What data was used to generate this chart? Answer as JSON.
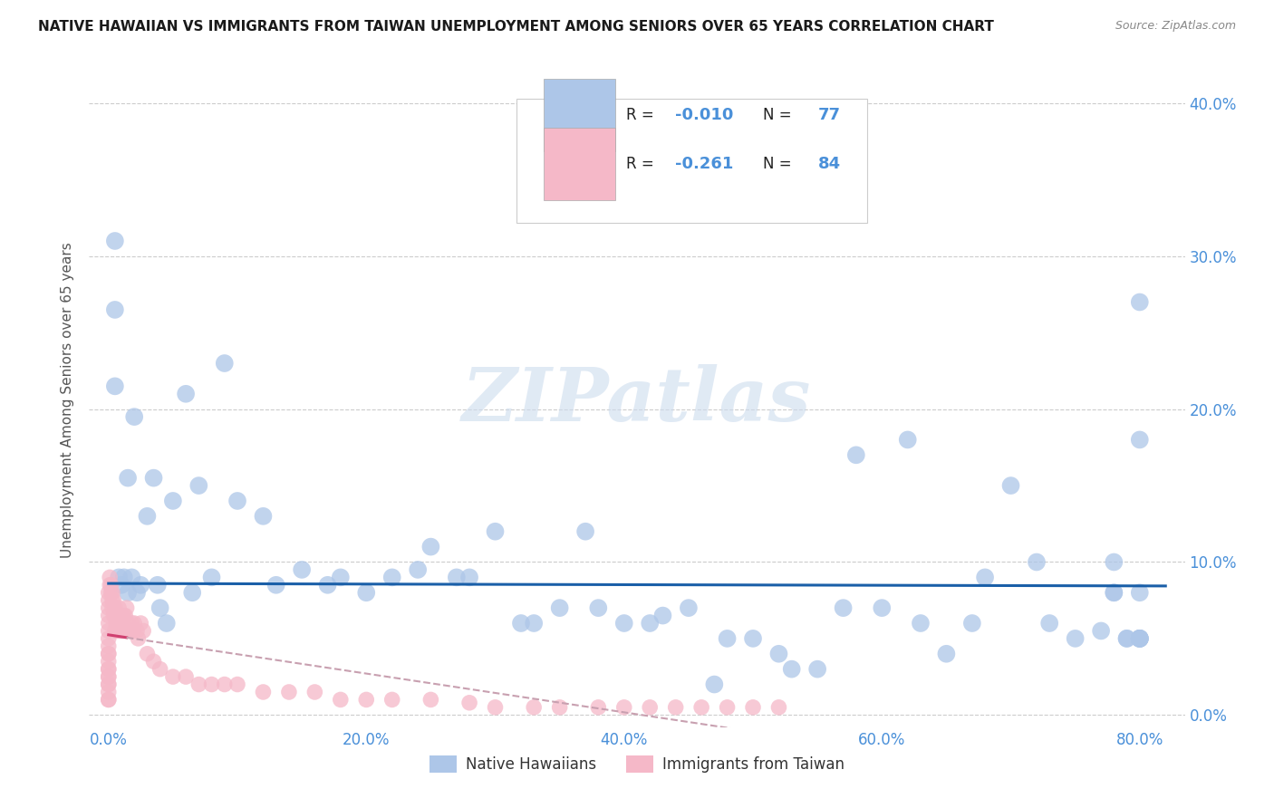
{
  "title": "NATIVE HAWAIIAN VS IMMIGRANTS FROM TAIWAN UNEMPLOYMENT AMONG SENIORS OVER 65 YEARS CORRELATION CHART",
  "source": "Source: ZipAtlas.com",
  "ylabel_label": "Unemployment Among Seniors over 65 years",
  "legend_label_blue": "Native Hawaiians",
  "legend_label_pink": "Immigrants from Taiwan",
  "R_blue": "-0.010",
  "N_blue": "77",
  "R_pink": "-0.261",
  "N_pink": "84",
  "blue_color": "#adc6e8",
  "pink_color": "#f5b8c8",
  "trend_blue_color": "#1a5fa8",
  "trend_pink_solid_color": "#d04070",
  "trend_pink_dash_color": "#c8a0b0",
  "axis_tick_color": "#4a90d9",
  "grid_color": "#cccccc",
  "background_color": "#ffffff",
  "watermark_text": "ZIPatlas",
  "watermark_color": "#ccdcee",
  "blue_x": [
    0.005,
    0.005,
    0.005,
    0.008,
    0.01,
    0.012,
    0.015,
    0.015,
    0.018,
    0.02,
    0.022,
    0.025,
    0.03,
    0.035,
    0.038,
    0.04,
    0.045,
    0.05,
    0.06,
    0.065,
    0.07,
    0.08,
    0.09,
    0.1,
    0.12,
    0.13,
    0.15,
    0.17,
    0.18,
    0.2,
    0.22,
    0.24,
    0.25,
    0.27,
    0.28,
    0.3,
    0.32,
    0.33,
    0.35,
    0.37,
    0.38,
    0.4,
    0.42,
    0.43,
    0.45,
    0.47,
    0.48,
    0.5,
    0.52,
    0.53,
    0.55,
    0.57,
    0.58,
    0.6,
    0.62,
    0.63,
    0.65,
    0.67,
    0.68,
    0.7,
    0.72,
    0.73,
    0.75,
    0.77,
    0.78,
    0.79,
    0.8,
    0.8,
    0.8,
    0.8,
    0.78,
    0.78,
    0.79,
    0.8,
    0.8,
    0.8,
    0.8
  ],
  "blue_y": [
    0.31,
    0.265,
    0.215,
    0.09,
    0.085,
    0.09,
    0.155,
    0.08,
    0.09,
    0.195,
    0.08,
    0.085,
    0.13,
    0.155,
    0.085,
    0.07,
    0.06,
    0.14,
    0.21,
    0.08,
    0.15,
    0.09,
    0.23,
    0.14,
    0.13,
    0.085,
    0.095,
    0.085,
    0.09,
    0.08,
    0.09,
    0.095,
    0.11,
    0.09,
    0.09,
    0.12,
    0.06,
    0.06,
    0.07,
    0.12,
    0.07,
    0.06,
    0.06,
    0.065,
    0.07,
    0.02,
    0.05,
    0.05,
    0.04,
    0.03,
    0.03,
    0.07,
    0.17,
    0.07,
    0.18,
    0.06,
    0.04,
    0.06,
    0.09,
    0.15,
    0.1,
    0.06,
    0.05,
    0.055,
    0.08,
    0.05,
    0.05,
    0.05,
    0.27,
    0.18,
    0.1,
    0.08,
    0.05,
    0.08,
    0.05,
    0.05,
    0.05
  ],
  "pink_x": [
    0.0,
    0.0,
    0.0,
    0.0,
    0.0,
    0.0,
    0.0,
    0.0,
    0.0,
    0.0,
    0.0,
    0.0,
    0.0,
    0.0,
    0.0,
    0.0,
    0.0,
    0.0,
    0.0,
    0.0,
    0.001,
    0.001,
    0.002,
    0.002,
    0.003,
    0.003,
    0.003,
    0.004,
    0.004,
    0.005,
    0.005,
    0.005,
    0.006,
    0.006,
    0.007,
    0.007,
    0.008,
    0.008,
    0.009,
    0.01,
    0.01,
    0.011,
    0.012,
    0.013,
    0.013,
    0.014,
    0.015,
    0.016,
    0.017,
    0.018,
    0.019,
    0.02,
    0.022,
    0.023,
    0.025,
    0.027,
    0.03,
    0.035,
    0.04,
    0.05,
    0.06,
    0.07,
    0.08,
    0.09,
    0.1,
    0.12,
    0.14,
    0.16,
    0.18,
    0.2,
    0.22,
    0.25,
    0.28,
    0.3,
    0.33,
    0.35,
    0.38,
    0.4,
    0.42,
    0.44,
    0.46,
    0.48,
    0.5,
    0.52
  ],
  "pink_y": [
    0.075,
    0.08,
    0.07,
    0.065,
    0.06,
    0.055,
    0.05,
    0.045,
    0.04,
    0.04,
    0.035,
    0.03,
    0.03,
    0.025,
    0.025,
    0.02,
    0.02,
    0.015,
    0.01,
    0.01,
    0.09,
    0.085,
    0.085,
    0.08,
    0.08,
    0.075,
    0.07,
    0.075,
    0.065,
    0.07,
    0.065,
    0.055,
    0.065,
    0.06,
    0.06,
    0.055,
    0.07,
    0.065,
    0.055,
    0.065,
    0.06,
    0.055,
    0.065,
    0.065,
    0.055,
    0.07,
    0.06,
    0.055,
    0.055,
    0.06,
    0.055,
    0.06,
    0.055,
    0.05,
    0.06,
    0.055,
    0.04,
    0.035,
    0.03,
    0.025,
    0.025,
    0.02,
    0.02,
    0.02,
    0.02,
    0.015,
    0.015,
    0.015,
    0.01,
    0.01,
    0.01,
    0.01,
    0.008,
    0.005,
    0.005,
    0.005,
    0.005,
    0.005,
    0.005,
    0.005,
    0.005,
    0.005,
    0.005,
    0.005
  ],
  "xlim": [
    -0.015,
    0.835
  ],
  "ylim": [
    -0.008,
    0.42
  ],
  "xtick_vals": [
    0.0,
    0.2,
    0.4,
    0.6,
    0.8
  ],
  "ytick_vals": [
    0.0,
    0.1,
    0.2,
    0.3,
    0.4
  ],
  "trend_blue_y_intercept": 0.086,
  "trend_blue_slope": -0.002,
  "trend_pink_solid_end": 0.014,
  "trend_pink_dash_end": 0.52
}
